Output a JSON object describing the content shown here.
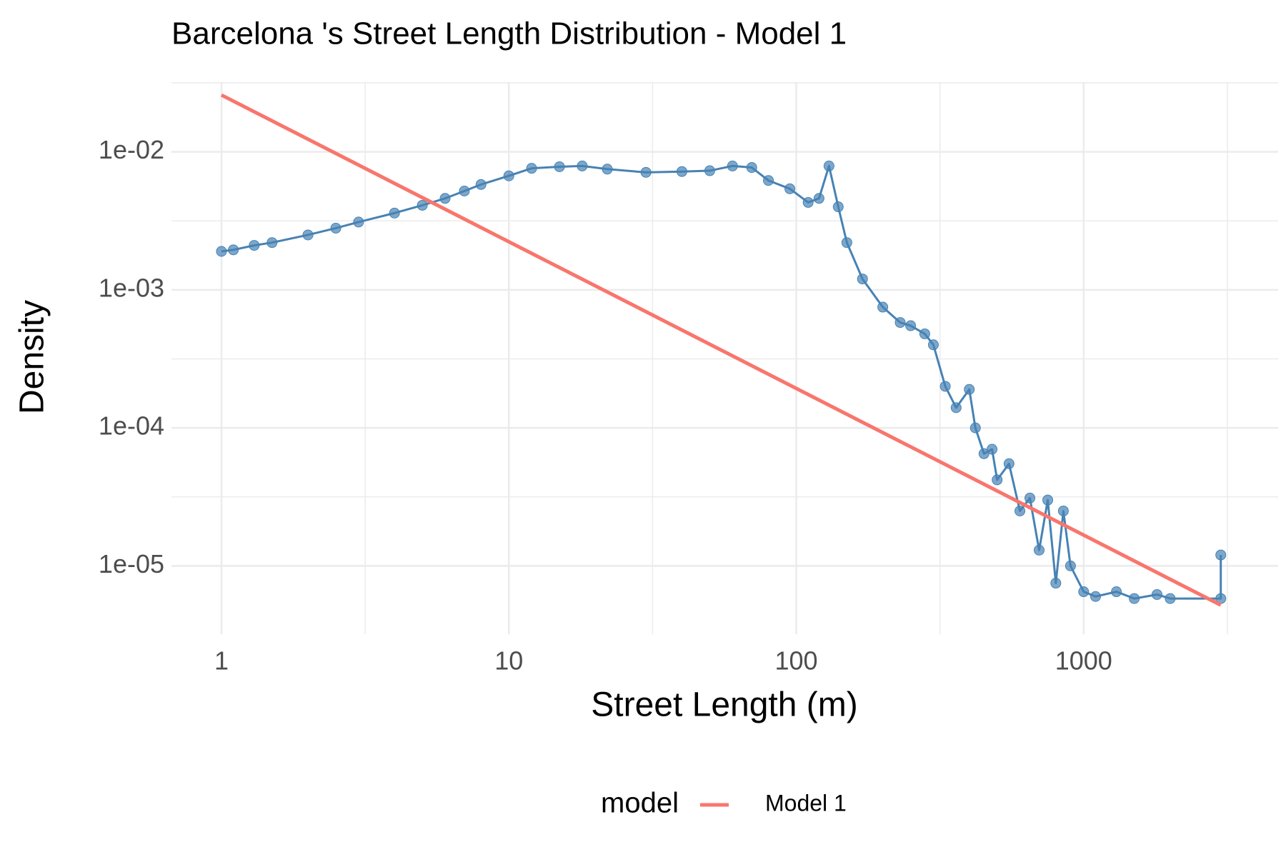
{
  "chart_data": {
    "type": "line",
    "title": "Barcelona 's Street Length Distribution - Model 1",
    "x_label": "Street Length (m)",
    "y_label": "Density",
    "log_x": true,
    "log_y": true,
    "grid": true,
    "minor_grid": true,
    "xlim": [
      0.67,
      4750
    ],
    "ylim": [
      3.2e-06,
      0.032
    ],
    "xticks": [
      1,
      10,
      100,
      1000
    ],
    "yticks": [
      {
        "value": 0.01,
        "label": "1e-02"
      },
      {
        "value": 0.001,
        "label": "1e-03"
      },
      {
        "value": 0.0001,
        "label": "1e-04"
      },
      {
        "value": 1e-05,
        "label": "1e-05"
      }
    ],
    "legend_title": "model",
    "legend_position": "bottom",
    "series": [
      {
        "color": "#4682b4",
        "markers": true,
        "x": [
          1,
          1.1,
          1.3,
          1.5,
          2,
          2.5,
          3,
          4,
          5,
          6,
          7,
          8,
          10,
          12,
          15,
          18,
          22,
          30,
          40,
          50,
          60,
          70,
          80,
          95,
          110,
          120,
          130,
          140,
          150,
          170,
          200,
          230,
          250,
          280,
          300,
          330,
          360,
          400,
          420,
          450,
          480,
          500,
          550,
          600,
          650,
          700,
          750,
          800,
          850,
          900,
          1000,
          1100,
          1300,
          1500,
          1800,
          2000,
          3000,
          3000
        ],
        "values": [
          0.0019,
          0.00195,
          0.0021,
          0.0022,
          0.0025,
          0.0028,
          0.0031,
          0.0036,
          0.0041,
          0.0046,
          0.0052,
          0.0058,
          0.0067,
          0.0076,
          0.0078,
          0.0079,
          0.0075,
          0.0071,
          0.0072,
          0.0073,
          0.0079,
          0.0077,
          0.0062,
          0.0054,
          0.0043,
          0.0046,
          0.0079,
          0.004,
          0.0022,
          0.0012,
          0.00075,
          0.00058,
          0.00055,
          0.00048,
          0.0004,
          0.0002,
          0.00014,
          0.00019,
          0.0001,
          6.5e-05,
          7e-05,
          4.2e-05,
          5.5e-05,
          2.5e-05,
          3.1e-05,
          1.3e-05,
          3e-05,
          7.5e-06,
          2.5e-05,
          1e-05,
          6.5e-06,
          6e-06,
          6.5e-06,
          5.8e-06,
          6.2e-06,
          5.8e-06,
          5.8e-06,
          1.2e-05
        ]
      },
      {
        "name": "Model 1",
        "color": "#f8766d",
        "x": [
          1,
          3000
        ],
        "values": [
          0.0258,
          5.2e-06
        ]
      }
    ]
  }
}
